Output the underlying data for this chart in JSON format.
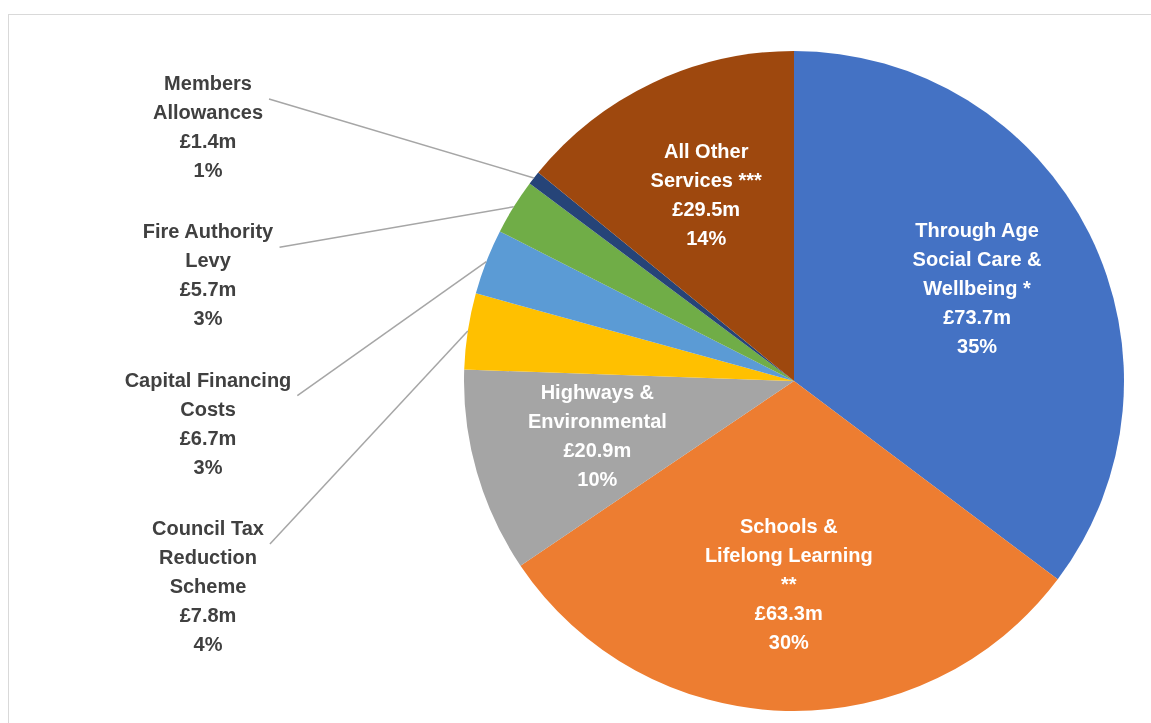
{
  "chart_data": {
    "type": "pie",
    "categories": [
      "Through Age Social Care & Wellbeing *",
      "Schools & Lifelong Learning **",
      "Highways & Environmental",
      "Council Tax Reduction Scheme",
      "Capital Financing Costs",
      "Fire Authority Levy",
      "Members Allowances",
      "All Other Services ***"
    ],
    "values": [
      73.7,
      63.3,
      20.9,
      7.8,
      6.7,
      5.7,
      1.4,
      29.5
    ],
    "colors": [
      "#4472c4",
      "#ed7d31",
      "#a5a5a5",
      "#ffc000",
      "#5b9bd5",
      "#70ad47",
      "#264478",
      "#9e480e"
    ],
    "value_labels": [
      "£73.7m",
      "£63.3m",
      "£20.9m",
      "£7.8m",
      "£6.7m",
      "£5.7m",
      "£1.4m",
      "£29.5m"
    ],
    "annotations": [
      "35%",
      "30%",
      "10%",
      "4%",
      "3%",
      "3%",
      "1%",
      "14%"
    ],
    "legend": false
  }
}
